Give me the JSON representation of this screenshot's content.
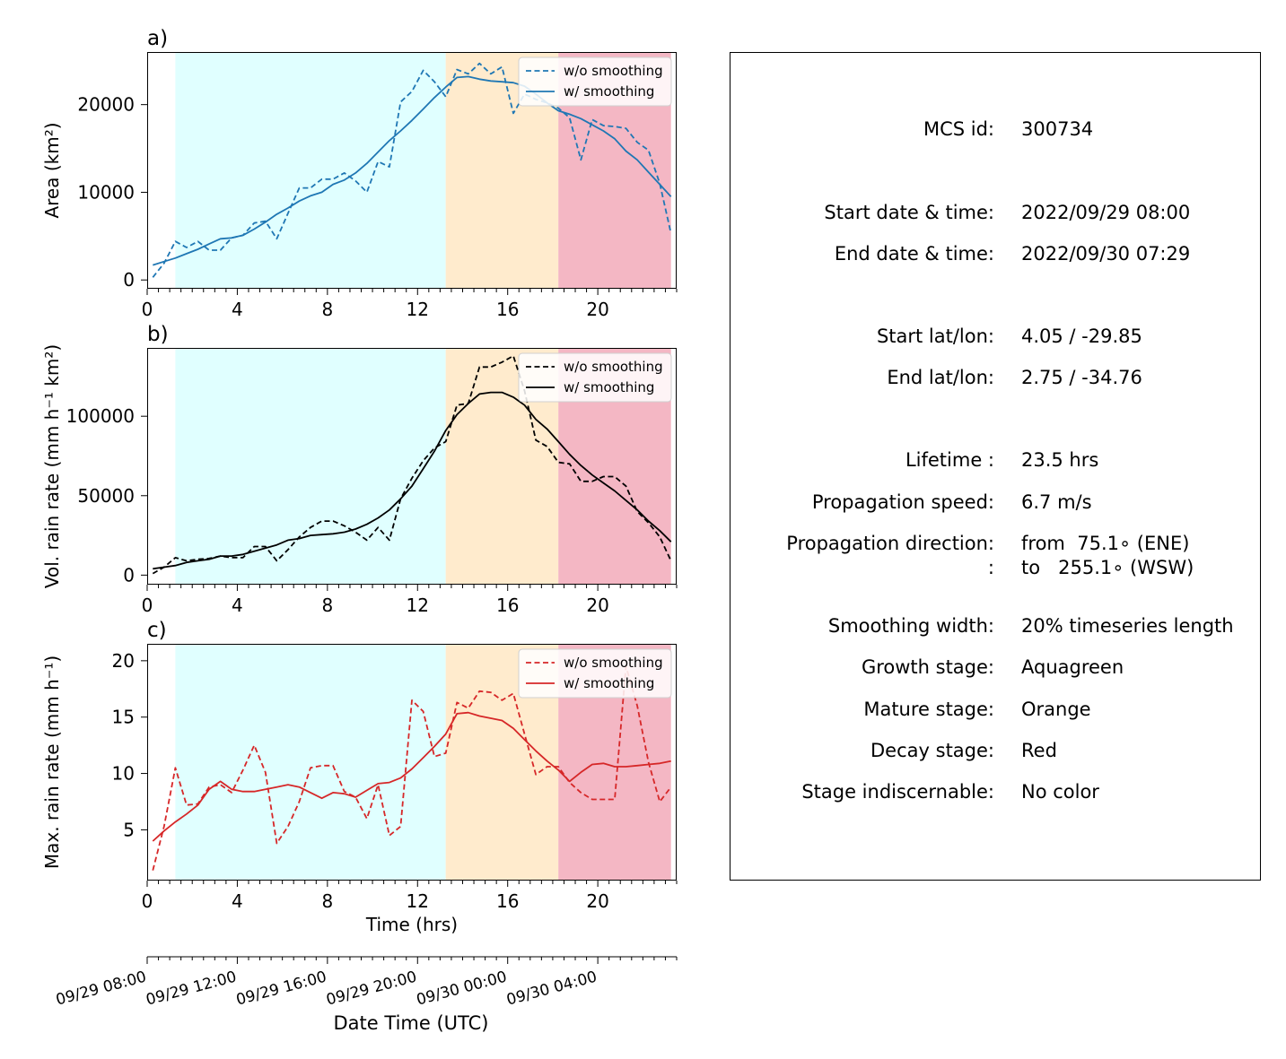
{
  "chart_data": [
    {
      "type": "line",
      "panel_label": "a)",
      "ylabel": "Area  (km²)",
      "xlim": [
        0,
        23.5
      ],
      "ylim": [
        -1000,
        26000
      ],
      "x_ticks": [
        "0",
        "4",
        "8",
        "12",
        "16",
        "20"
      ],
      "y_ticks": [
        0,
        10000,
        20000
      ],
      "y_tick_labels": [
        "0",
        "10000",
        "20000"
      ],
      "stages": [
        {
          "stage": "Growth",
          "from": 1.25,
          "to": 13.25,
          "color": "#e0ffff"
        },
        {
          "stage": "Mature",
          "from": 13.25,
          "to": 18.25,
          "color": "#ffebcd"
        },
        {
          "stage": "Decay",
          "from": 18.25,
          "to": 23.25,
          "color": "#f4b7c4"
        }
      ],
      "legend_position": "upper-right",
      "series": [
        {
          "name": "w/o smoothing",
          "style": "dashed",
          "color": "#1f77b4",
          "x": [
            0.25,
            0.75,
            1.25,
            1.75,
            2.25,
            2.75,
            3.25,
            3.75,
            4.25,
            4.75,
            5.25,
            5.75,
            6.25,
            6.75,
            7.25,
            7.75,
            8.25,
            8.75,
            9.25,
            9.75,
            10.25,
            10.75,
            11.25,
            11.75,
            12.25,
            12.75,
            13.25,
            13.75,
            14.25,
            14.75,
            15.25,
            15.75,
            16.25,
            16.75,
            17.25,
            17.75,
            18.25,
            18.75,
            19.25,
            19.75,
            20.25,
            20.75,
            21.25,
            21.75,
            22.25,
            22.75,
            23.25
          ],
          "values": [
            300,
            1900,
            4400,
            3700,
            4400,
            3400,
            3400,
            4800,
            5100,
            6500,
            6700,
            4700,
            7600,
            10500,
            10500,
            11500,
            11500,
            12200,
            11300,
            10000,
            13500,
            12900,
            20300,
            21500,
            23900,
            22600,
            20900,
            24000,
            23500,
            24700,
            23500,
            24300,
            19000,
            21200,
            20600,
            20200,
            19600,
            18500,
            13700,
            18300,
            17600,
            17500,
            17300,
            15700,
            14800,
            11000,
            5300
          ]
        },
        {
          "name": "w/ smoothing",
          "style": "solid",
          "color": "#1f77b4",
          "x": [
            0.25,
            0.75,
            1.25,
            1.75,
            2.25,
            2.75,
            3.25,
            3.75,
            4.25,
            4.75,
            5.25,
            5.75,
            6.25,
            6.75,
            7.25,
            7.75,
            8.25,
            8.75,
            9.25,
            9.75,
            10.25,
            10.75,
            11.25,
            11.75,
            12.25,
            12.75,
            13.25,
            13.75,
            14.25,
            14.75,
            15.25,
            15.75,
            16.25,
            16.75,
            17.25,
            17.75,
            18.25,
            18.75,
            19.25,
            19.75,
            20.25,
            20.75,
            21.25,
            21.75,
            22.25,
            22.75,
            23.25
          ],
          "values": [
            1700,
            2100,
            2500,
            3000,
            3500,
            4100,
            4700,
            4800,
            5100,
            5800,
            6600,
            7500,
            8200,
            9000,
            9600,
            10000,
            10900,
            11400,
            12200,
            13300,
            14600,
            15900,
            17000,
            18200,
            19500,
            20800,
            22000,
            23100,
            23200,
            22900,
            22700,
            22600,
            22500,
            22100,
            21200,
            20200,
            19300,
            18900,
            18400,
            17700,
            17000,
            16100,
            14700,
            13700,
            12300,
            10900,
            9500
          ]
        }
      ]
    },
    {
      "type": "line",
      "panel_label": "b)",
      "ylabel": "Vol. rain rate (mm h⁻¹ km²)",
      "xlim": [
        0,
        23.5
      ],
      "ylim": [
        -6000,
        143000
      ],
      "x_ticks": [
        "0",
        "4",
        "8",
        "12",
        "16",
        "20"
      ],
      "y_ticks": [
        0,
        50000,
        100000
      ],
      "y_tick_labels": [
        "0",
        "50000",
        "100000"
      ],
      "legend_position": "upper-right",
      "series": [
        {
          "name": "w/o smoothing",
          "style": "dashed",
          "color": "#000000",
          "x": [
            0.25,
            0.75,
            1.25,
            1.75,
            2.25,
            2.75,
            3.25,
            3.75,
            4.25,
            4.75,
            5.25,
            5.75,
            6.25,
            6.75,
            7.25,
            7.75,
            8.25,
            8.75,
            9.25,
            9.75,
            10.25,
            10.75,
            11.25,
            11.75,
            12.25,
            12.75,
            13.25,
            13.75,
            14.25,
            14.75,
            15.25,
            15.75,
            16.25,
            16.75,
            17.25,
            17.75,
            18.25,
            18.75,
            19.25,
            19.75,
            20.25,
            20.75,
            21.25,
            21.75,
            22.25,
            22.75,
            23.25
          ],
          "values": [
            1000,
            5000,
            11000,
            9000,
            10000,
            10500,
            12000,
            11000,
            11000,
            18000,
            18000,
            9000,
            16000,
            24000,
            30000,
            34000,
            34000,
            31000,
            27000,
            22000,
            30000,
            22000,
            48000,
            61000,
            72000,
            80000,
            84000,
            107000,
            108000,
            131000,
            131000,
            134000,
            138000,
            116000,
            85000,
            81000,
            71000,
            70000,
            59000,
            59000,
            62000,
            62000,
            56000,
            40000,
            33000,
            24000,
            9000
          ]
        },
        {
          "name": "w/ smoothing",
          "style": "solid",
          "color": "#000000",
          "x": [
            0.25,
            0.75,
            1.25,
            1.75,
            2.25,
            2.75,
            3.25,
            3.75,
            4.25,
            4.75,
            5.25,
            5.75,
            6.25,
            6.75,
            7.25,
            7.75,
            8.25,
            8.75,
            9.25,
            9.75,
            10.25,
            10.75,
            11.25,
            11.75,
            12.25,
            12.75,
            13.25,
            13.75,
            14.25,
            14.75,
            15.25,
            15.75,
            16.25,
            16.75,
            17.25,
            17.75,
            18.25,
            18.75,
            19.25,
            19.75,
            20.25,
            20.75,
            21.25,
            21.75,
            22.25,
            22.75,
            23.25
          ],
          "values": [
            4000,
            5000,
            6000,
            8000,
            9000,
            10000,
            12000,
            12000,
            13000,
            15000,
            17000,
            19000,
            22000,
            23000,
            25000,
            25500,
            26000,
            27000,
            29000,
            32000,
            36000,
            41000,
            48000,
            56000,
            67000,
            78000,
            91000,
            101000,
            108000,
            114000,
            115000,
            115000,
            112000,
            107000,
            98000,
            92000,
            84000,
            76000,
            69000,
            63000,
            58000,
            53000,
            47000,
            41000,
            34000,
            28000,
            21000
          ]
        }
      ]
    },
    {
      "type": "line",
      "panel_label": "c)",
      "ylabel": "Max. rain rate  (mm h⁻¹)",
      "xlabel": "Time (hrs)",
      "xlim": [
        0,
        23.5
      ],
      "ylim": [
        0.5,
        21.5
      ],
      "x_ticks": [
        "0",
        "4",
        "8",
        "12",
        "16",
        "20"
      ],
      "y_ticks": [
        5,
        10,
        15,
        20
      ],
      "y_tick_labels": [
        "5",
        "10",
        "15",
        "20"
      ],
      "legend_position": "upper-right",
      "series": [
        {
          "name": "w/o smoothing",
          "style": "dashed",
          "color": "#d62728",
          "x": [
            0.25,
            0.75,
            1.25,
            1.75,
            2.25,
            2.75,
            3.25,
            3.75,
            4.25,
            4.75,
            5.25,
            5.75,
            6.25,
            6.75,
            7.25,
            7.75,
            8.25,
            8.75,
            9.25,
            9.75,
            10.25,
            10.75,
            11.25,
            11.75,
            12.25,
            12.75,
            13.25,
            13.75,
            14.25,
            14.75,
            15.25,
            15.75,
            16.25,
            16.75,
            17.25,
            17.75,
            18.25,
            18.75,
            19.25,
            19.75,
            20.25,
            20.75,
            21.25,
            21.75,
            22.25,
            22.75,
            23.25
          ],
          "values": [
            1.4,
            5.3,
            10.5,
            7.2,
            7.3,
            8.8,
            9.0,
            8.3,
            10.3,
            12.5,
            10.1,
            3.8,
            5.3,
            7.5,
            10.5,
            10.7,
            10.7,
            8.4,
            7.9,
            6.0,
            9.0,
            4.5,
            5.3,
            16.5,
            15.5,
            11.5,
            11.8,
            16.3,
            15.8,
            17.3,
            17.2,
            16.5,
            17.1,
            13.5,
            9.9,
            10.6,
            10.6,
            9.2,
            8.3,
            7.7,
            7.7,
            7.7,
            19.5,
            16.0,
            11.0,
            7.5,
            8.8
          ]
        },
        {
          "name": "w/ smoothing",
          "style": "solid",
          "color": "#d62728",
          "x": [
            0.25,
            0.75,
            1.25,
            1.75,
            2.25,
            2.75,
            3.25,
            3.75,
            4.25,
            4.75,
            5.25,
            5.75,
            6.25,
            6.75,
            7.25,
            7.75,
            8.25,
            8.75,
            9.25,
            9.75,
            10.25,
            10.75,
            11.25,
            11.75,
            12.25,
            12.75,
            13.25,
            13.75,
            14.25,
            14.75,
            15.25,
            15.75,
            16.25,
            16.75,
            17.25,
            17.75,
            18.25,
            18.75,
            19.25,
            19.75,
            20.25,
            20.75,
            21.25,
            21.75,
            22.25,
            22.75,
            23.25
          ],
          "values": [
            4.0,
            4.9,
            5.7,
            6.4,
            7.2,
            8.6,
            9.3,
            8.6,
            8.4,
            8.4,
            8.6,
            8.8,
            9.0,
            8.8,
            8.3,
            7.8,
            8.3,
            8.2,
            7.9,
            8.5,
            9.1,
            9.2,
            9.6,
            10.4,
            11.4,
            12.4,
            13.5,
            15.3,
            15.4,
            15.1,
            14.9,
            14.7,
            14.0,
            13.0,
            12.0,
            11.1,
            10.3,
            9.3,
            10.1,
            10.8,
            10.9,
            10.6,
            10.6,
            10.7,
            10.8,
            10.9,
            11.1
          ]
        }
      ]
    }
  ],
  "datetime_axis": {
    "label": "Date Time (UTC)",
    "tick_labels": [
      "09/29 08:00",
      "09/29 12:00",
      "09/29 16:00",
      "09/29 20:00",
      "09/30 00:00",
      "09/30 04:00"
    ]
  },
  "info_panel": {
    "rows": [
      {
        "label": "MCS id:",
        "value": "300734"
      },
      {
        "label": "Start date & time:",
        "value": "2022/09/29 08:00"
      },
      {
        "label": "End date & time:",
        "value": "2022/09/30 07:29"
      },
      {
        "label": "Start lat/lon:",
        "value": "4.05 / -29.85"
      },
      {
        "label": "End lat/lon:",
        "value": "2.75 / -34.76"
      },
      {
        "label": "Lifetime :",
        "value": "23.5 hrs"
      },
      {
        "label": "Propagation speed:",
        "value": "6.7 m/s"
      },
      {
        "label": "Propagation direction:",
        "value": "from  75.1∘ (ENE)"
      },
      {
        "label": ":",
        "value": "to   255.1∘ (WSW)"
      },
      {
        "label": "Smoothing width:",
        "value": "20% timeseries length"
      },
      {
        "label": "Growth stage:",
        "value": "Aquagreen"
      },
      {
        "label": "Mature stage:",
        "value": "Orange"
      },
      {
        "label": "Decay stage:",
        "value": "Red"
      },
      {
        "label": "Stage indiscernable:",
        "value": "No color"
      }
    ]
  }
}
